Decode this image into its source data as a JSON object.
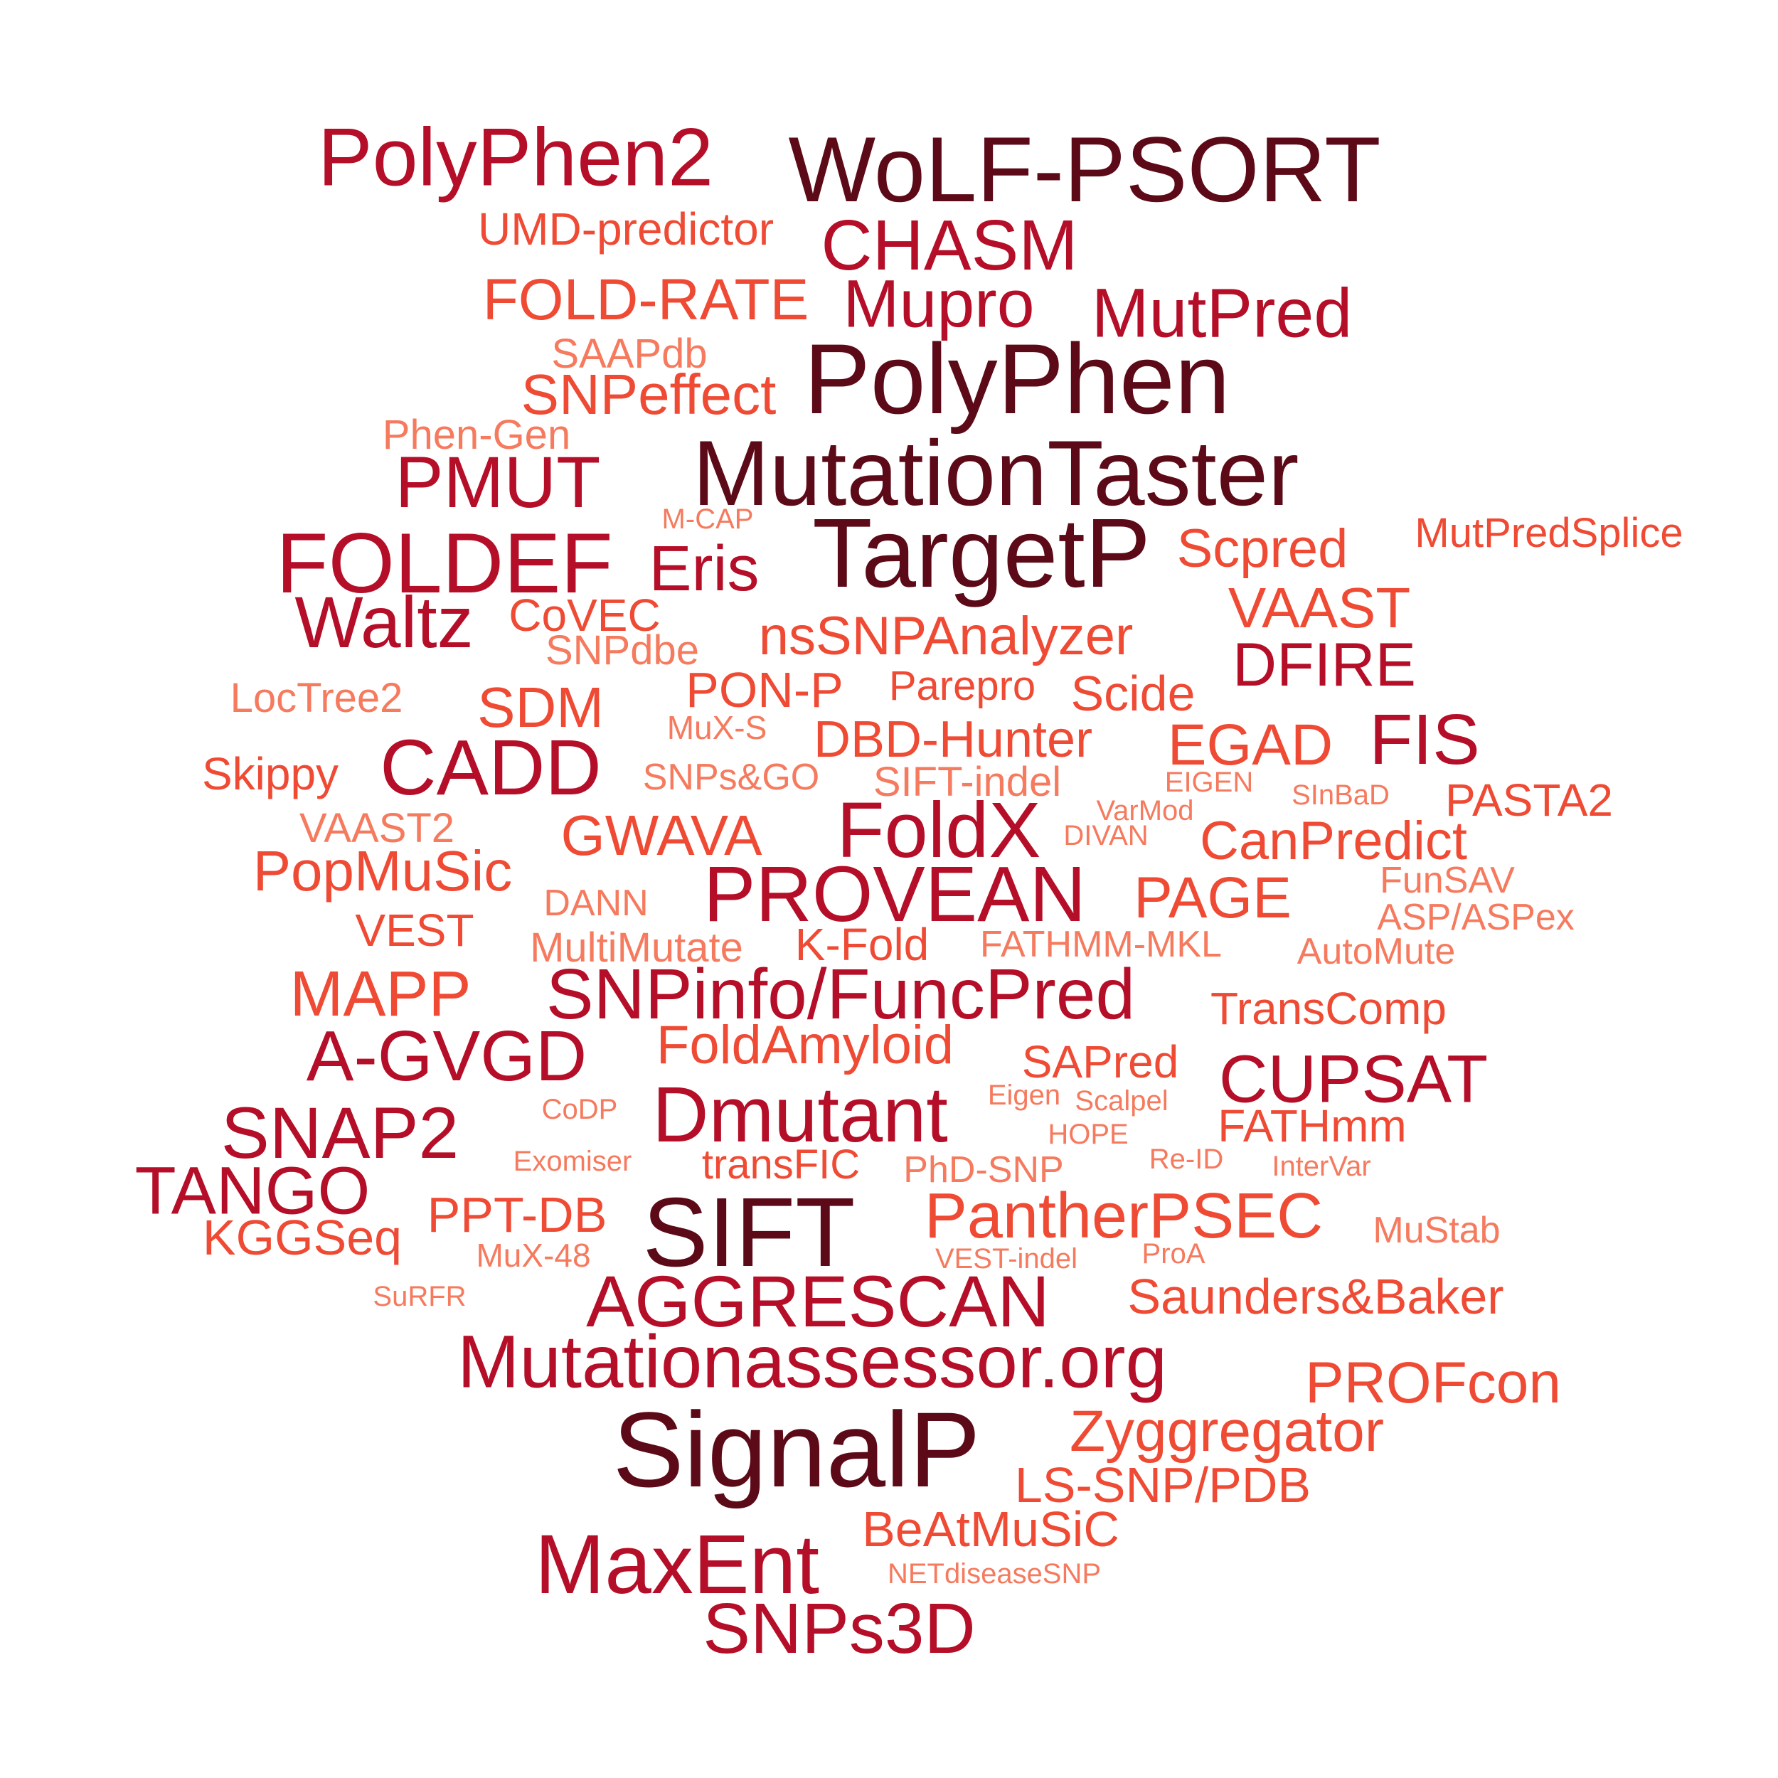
{
  "palette": {
    "darkest": "#5c0a18",
    "crimson": "#b50e28",
    "red_orange": "#ef4a34",
    "salmon": "#f57a5e",
    "background": "#ffffff"
  },
  "words": [
    {
      "text": "PolyPhen2",
      "tone": "crimson"
    },
    {
      "text": "WoLF-PSORT",
      "tone": "darkest"
    },
    {
      "text": "UMD-predictor",
      "tone": "red_orange"
    },
    {
      "text": "CHASM",
      "tone": "crimson"
    },
    {
      "text": "FOLD-RATE",
      "tone": "red_orange"
    },
    {
      "text": "Mupro",
      "tone": "crimson"
    },
    {
      "text": "MutPred",
      "tone": "crimson"
    },
    {
      "text": "SAAPdb",
      "tone": "salmon"
    },
    {
      "text": "PolyPhen",
      "tone": "darkest"
    },
    {
      "text": "SNPeffect",
      "tone": "red_orange"
    },
    {
      "text": "Phen-Gen",
      "tone": "salmon"
    },
    {
      "text": "PMUT",
      "tone": "crimson"
    },
    {
      "text": "MutationTaster",
      "tone": "darkest"
    },
    {
      "text": "M-CAP",
      "tone": "salmon"
    },
    {
      "text": "TargetP",
      "tone": "darkest"
    },
    {
      "text": "FOLDEF",
      "tone": "crimson"
    },
    {
      "text": "Eris",
      "tone": "crimson"
    },
    {
      "text": "Scpred",
      "tone": "red_orange"
    },
    {
      "text": "MutPredSplice",
      "tone": "red_orange"
    },
    {
      "text": "Waltz",
      "tone": "crimson"
    },
    {
      "text": "CoVEC",
      "tone": "red_orange"
    },
    {
      "text": "VAAST",
      "tone": "red_orange"
    },
    {
      "text": "nsSNPAnalyzer",
      "tone": "red_orange"
    },
    {
      "text": "SNPdbe",
      "tone": "salmon"
    },
    {
      "text": "DFIRE",
      "tone": "crimson"
    },
    {
      "text": "LocTree2",
      "tone": "salmon"
    },
    {
      "text": "SDM",
      "tone": "red_orange"
    },
    {
      "text": "PON-P",
      "tone": "red_orange"
    },
    {
      "text": "Parepro",
      "tone": "red_orange"
    },
    {
      "text": "Scide",
      "tone": "red_orange"
    },
    {
      "text": "MuX-S",
      "tone": "salmon"
    },
    {
      "text": "DBD-Hunter",
      "tone": "red_orange"
    },
    {
      "text": "EGAD",
      "tone": "red_orange"
    },
    {
      "text": "FIS",
      "tone": "crimson"
    },
    {
      "text": "Skippy",
      "tone": "red_orange"
    },
    {
      "text": "CADD",
      "tone": "crimson"
    },
    {
      "text": "SNPs&GO",
      "tone": "salmon"
    },
    {
      "text": "SIFT-indel",
      "tone": "salmon"
    },
    {
      "text": "EIGEN",
      "tone": "salmon"
    },
    {
      "text": "SInBaD",
      "tone": "salmon"
    },
    {
      "text": "PASTA2",
      "tone": "red_orange"
    },
    {
      "text": "VAAST2",
      "tone": "salmon"
    },
    {
      "text": "GWAVA",
      "tone": "red_orange"
    },
    {
      "text": "FoldX",
      "tone": "crimson"
    },
    {
      "text": "VarMod",
      "tone": "salmon"
    },
    {
      "text": "DIVAN",
      "tone": "salmon"
    },
    {
      "text": "CanPredict",
      "tone": "red_orange"
    },
    {
      "text": "PopMuSic",
      "tone": "red_orange"
    },
    {
      "text": "FunSAV",
      "tone": "salmon"
    },
    {
      "text": "DANN",
      "tone": "salmon"
    },
    {
      "text": "PROVEAN",
      "tone": "crimson"
    },
    {
      "text": "PAGE",
      "tone": "red_orange"
    },
    {
      "text": "ASP/ASPex",
      "tone": "salmon"
    },
    {
      "text": "VEST",
      "tone": "red_orange"
    },
    {
      "text": "MultiMutate",
      "tone": "salmon"
    },
    {
      "text": "K-Fold",
      "tone": "red_orange"
    },
    {
      "text": "FATHMM-MKL",
      "tone": "salmon"
    },
    {
      "text": "AutoMute",
      "tone": "salmon"
    },
    {
      "text": "MAPP",
      "tone": "red_orange"
    },
    {
      "text": "SNPinfo/FuncPred",
      "tone": "crimson"
    },
    {
      "text": "TransComp",
      "tone": "red_orange"
    },
    {
      "text": "A-GVGD",
      "tone": "crimson"
    },
    {
      "text": "FoldAmyloid",
      "tone": "red_orange"
    },
    {
      "text": "SAPred",
      "tone": "red_orange"
    },
    {
      "text": "CUPSAT",
      "tone": "crimson"
    },
    {
      "text": "SNAP2",
      "tone": "crimson"
    },
    {
      "text": "CoDP",
      "tone": "salmon"
    },
    {
      "text": "Dmutant",
      "tone": "crimson"
    },
    {
      "text": "Eigen",
      "tone": "salmon"
    },
    {
      "text": "Scalpel",
      "tone": "salmon"
    },
    {
      "text": "FATHmm",
      "tone": "red_orange"
    },
    {
      "text": "HOPE",
      "tone": "salmon"
    },
    {
      "text": "TANGO",
      "tone": "crimson"
    },
    {
      "text": "Exomiser",
      "tone": "salmon"
    },
    {
      "text": "transFIC",
      "tone": "red_orange"
    },
    {
      "text": "PhD-SNP",
      "tone": "salmon"
    },
    {
      "text": "Re-ID",
      "tone": "salmon"
    },
    {
      "text": "InterVar",
      "tone": "salmon"
    },
    {
      "text": "PPT-DB",
      "tone": "red_orange"
    },
    {
      "text": "SIFT",
      "tone": "darkest"
    },
    {
      "text": "PantherPSEC",
      "tone": "red_orange"
    },
    {
      "text": "KGGSeq",
      "tone": "red_orange"
    },
    {
      "text": "MuStab",
      "tone": "salmon"
    },
    {
      "text": "MuX-48",
      "tone": "salmon"
    },
    {
      "text": "VEST-indel",
      "tone": "salmon"
    },
    {
      "text": "ProA",
      "tone": "salmon"
    },
    {
      "text": "SuRFR",
      "tone": "salmon"
    },
    {
      "text": "AGGRESCAN",
      "tone": "crimson"
    },
    {
      "text": "Saunders&Baker",
      "tone": "red_orange"
    },
    {
      "text": "Mutationassessor.org",
      "tone": "crimson"
    },
    {
      "text": "PROFcon",
      "tone": "red_orange"
    },
    {
      "text": "SignalP",
      "tone": "darkest"
    },
    {
      "text": "Zyggregator",
      "tone": "red_orange"
    },
    {
      "text": "LS-SNP/PDB",
      "tone": "red_orange"
    },
    {
      "text": "BeAtMuSiC",
      "tone": "red_orange"
    },
    {
      "text": "MaxEnt",
      "tone": "crimson"
    },
    {
      "text": "NETdiseaseSNP",
      "tone": "salmon"
    },
    {
      "text": "SNPs3D",
      "tone": "crimson"
    }
  ]
}
